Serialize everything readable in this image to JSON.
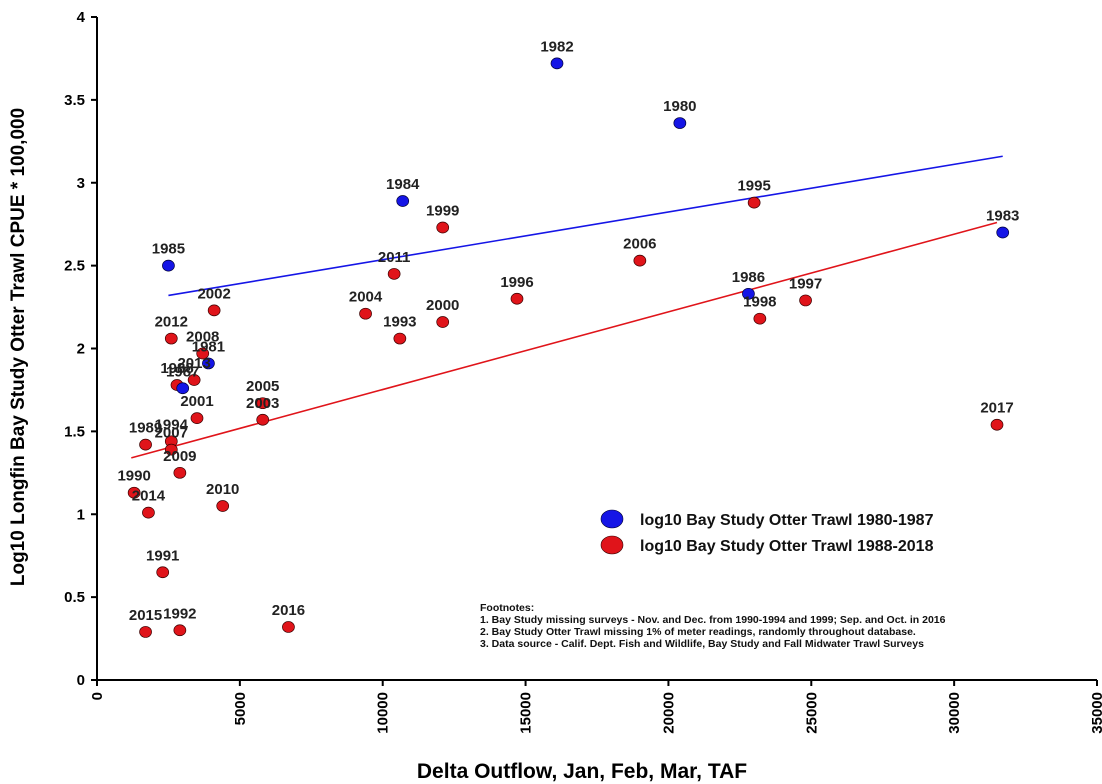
{
  "chart_data": {
    "type": "scatter",
    "title": "",
    "xlabel": "Delta Outflow, Jan, Feb, Mar, TAF",
    "ylabel": "Log10 Longfin Bay Study Otter Trawl CPUE * 100,000",
    "xlim": [
      0,
      35000
    ],
    "ylim": [
      0,
      4
    ],
    "xticks": [
      0,
      5000,
      10000,
      15000,
      20000,
      25000,
      30000,
      35000
    ],
    "yticks": [
      0,
      0.5,
      1,
      1.5,
      2,
      2.5,
      3,
      3.5,
      4
    ],
    "x_tick_labels": [
      "0",
      "5000",
      "10000",
      "15000",
      "20000",
      "25000",
      "30000",
      "35000"
    ],
    "y_tick_labels": [
      "0",
      "0.5",
      "1",
      "1.5",
      "2",
      "2.5",
      "3",
      "3.5",
      "4"
    ],
    "grid": false,
    "legend_position": "center-right",
    "series": [
      {
        "name": "log10 Bay Study Otter Trawl 1980-1987",
        "color": "#1515e6",
        "points": [
          {
            "label": "1980",
            "x": 20400,
            "y": 3.36
          },
          {
            "label": "1981",
            "x": 3900,
            "y": 1.91
          },
          {
            "label": "1982",
            "x": 16100,
            "y": 3.72
          },
          {
            "label": "1983",
            "x": 31700,
            "y": 2.7
          },
          {
            "label": "1984",
            "x": 10700,
            "y": 2.89
          },
          {
            "label": "1985",
            "x": 2500,
            "y": 2.5
          },
          {
            "label": "1986",
            "x": 22800,
            "y": 2.33
          },
          {
            "label": "1987",
            "x": 3000,
            "y": 1.76
          }
        ],
        "trendline": {
          "x": [
            2500,
            31700
          ],
          "y": [
            2.32,
            3.16
          ]
        }
      },
      {
        "name": "log10 Bay Study Otter Trawl 1988-2018",
        "color": "#e0141a",
        "points": [
          {
            "label": "1988",
            "x": 2800,
            "y": 1.78
          },
          {
            "label": "1989",
            "x": 1700,
            "y": 1.42
          },
          {
            "label": "1990",
            "x": 1300,
            "y": 1.13
          },
          {
            "label": "1991",
            "x": 2300,
            "y": 0.65
          },
          {
            "label": "1992",
            "x": 2900,
            "y": 0.3
          },
          {
            "label": "1993",
            "x": 10600,
            "y": 2.06
          },
          {
            "label": "1994",
            "x": 2600,
            "y": 1.44
          },
          {
            "label": "1995",
            "x": 23000,
            "y": 2.88
          },
          {
            "label": "1996",
            "x": 14700,
            "y": 2.3
          },
          {
            "label": "1997",
            "x": 24800,
            "y": 2.29
          },
          {
            "label": "1998",
            "x": 23200,
            "y": 2.18
          },
          {
            "label": "1999",
            "x": 12100,
            "y": 2.73
          },
          {
            "label": "2000",
            "x": 12100,
            "y": 2.16
          },
          {
            "label": "2001",
            "x": 3500,
            "y": 1.58
          },
          {
            "label": "2002",
            "x": 4100,
            "y": 2.23
          },
          {
            "label": "2003",
            "x": 5800,
            "y": 1.57
          },
          {
            "label": "2004",
            "x": 9400,
            "y": 2.21
          },
          {
            "label": "2005",
            "x": 5800,
            "y": 1.67
          },
          {
            "label": "2006",
            "x": 19000,
            "y": 2.53
          },
          {
            "label": "2007",
            "x": 2600,
            "y": 1.39
          },
          {
            "label": "2008",
            "x": 3700,
            "y": 1.97
          },
          {
            "label": "2009",
            "x": 2900,
            "y": 1.25
          },
          {
            "label": "2010",
            "x": 4400,
            "y": 1.05
          },
          {
            "label": "2011",
            "x": 10400,
            "y": 2.45
          },
          {
            "label": "2012",
            "x": 2600,
            "y": 2.06
          },
          {
            "label": "2013",
            "x": 3400,
            "y": 1.81
          },
          {
            "label": "2014",
            "x": 1800,
            "y": 1.01
          },
          {
            "label": "2015",
            "x": 1700,
            "y": 0.29
          },
          {
            "label": "2016",
            "x": 6700,
            "y": 0.32
          },
          {
            "label": "2017",
            "x": 31500,
            "y": 1.54
          }
        ],
        "trendline": {
          "x": [
            1200,
            31500
          ],
          "y": [
            1.34,
            2.76
          ]
        }
      }
    ],
    "footnotes": [
      "Footnotes:",
      "1. Bay Study missing surveys - Nov. and Dec. from 1990-1994 and 1999; Sep. and Oct. in 2016",
      "2. Bay Study Otter Trawl missing 1% of meter readings, randomly throughout database.",
      "3. Data source - Calif. Dept. Fish and Wildlife, Bay Study and Fall Midwater Trawl Surveys"
    ]
  }
}
